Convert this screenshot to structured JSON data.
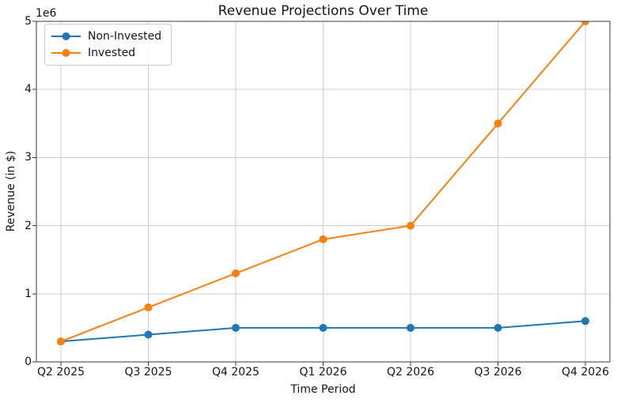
{
  "figure": {
    "title": "Revenue Projections Over Time",
    "xlabel": "Time Period",
    "ylabel": "Revenue (in $)",
    "y_offset_label": "1e6",
    "background_color": "#ffffff"
  },
  "legend": {
    "position": "upper left",
    "items": [
      {
        "label": "Non-Invested",
        "color": "#1f77b4",
        "marker": "circle-on-line"
      },
      {
        "label": "Invested",
        "color": "#ff7f0e",
        "marker": "circle-on-line"
      }
    ]
  },
  "chart_data": {
    "type": "line",
    "title": "Revenue Projections Over Time",
    "xlabel": "Time Period",
    "ylabel": "Revenue (in $)",
    "categories": [
      "Q2 2025",
      "Q3 2025",
      "Q4 2025",
      "Q1 2026",
      "Q2 2026",
      "Q3 2026",
      "Q4 2026"
    ],
    "series": [
      {
        "name": "Non-Invested",
        "color": "#1f77b4",
        "marker": "circle",
        "values": [
          300000,
          400000,
          500000,
          500000,
          500000,
          500000,
          600000
        ]
      },
      {
        "name": "Invested",
        "color": "#ff7f0e",
        "marker": "circle",
        "values": [
          300000,
          800000,
          1300000,
          1800000,
          2000000,
          3500000,
          5000000
        ]
      }
    ],
    "ylim": [
      0,
      5000000
    ],
    "yticks": [
      0,
      1000000,
      2000000,
      3000000,
      4000000,
      5000000
    ],
    "ytick_labels": [
      "0",
      "1",
      "2",
      "3",
      "4",
      "5"
    ],
    "y_offset_label": "1e6",
    "grid": true,
    "grid_color": "#cccccc",
    "spine_color": "#3a3a3a",
    "legend_position": "upper left"
  }
}
